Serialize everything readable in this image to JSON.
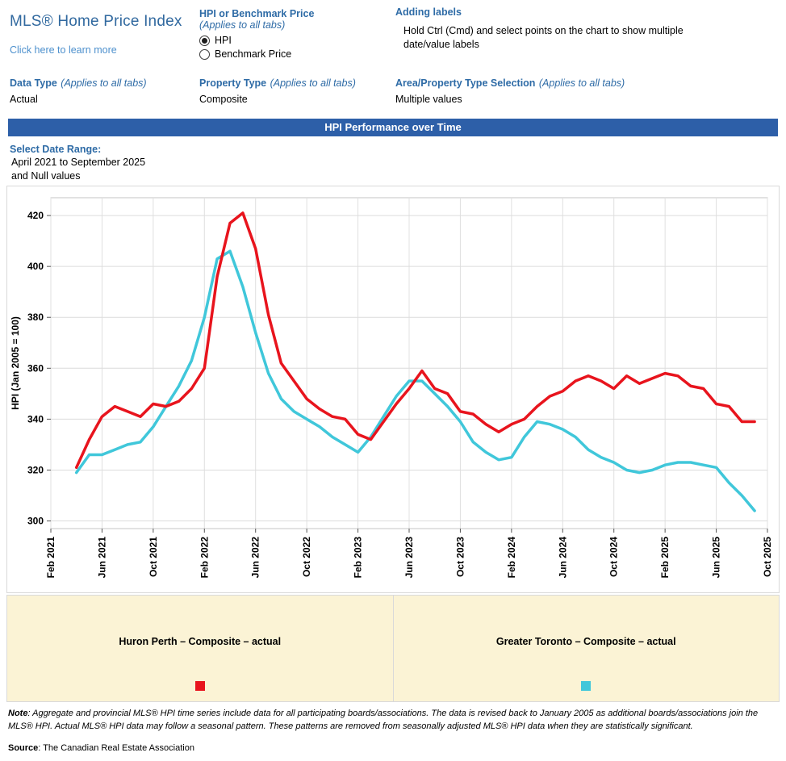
{
  "header": {
    "title": "MLS® Home Price Index",
    "learn_more": "Click here to learn more",
    "hpi_or_benchmark": {
      "label": "HPI or Benchmark Price",
      "sublabel": "(Applies to all tabs)",
      "options": [
        {
          "label": "HPI",
          "selected": true
        },
        {
          "label": "Benchmark Price",
          "selected": false
        }
      ]
    },
    "adding_labels": {
      "label": "Adding labels",
      "text": "Hold Ctrl (Cmd) and select points on the chart to show multiple date/value labels"
    },
    "data_type": {
      "label": "Data Type",
      "sublabel": "(Applies to all tabs)",
      "value": "Actual"
    },
    "property_type": {
      "label": "Property Type",
      "sublabel": "(Applies to all tabs)",
      "value": "Composite"
    },
    "area_selection": {
      "label": "Area/Property Type Selection",
      "sublabel": "(Applies to all tabs)",
      "value": "Multiple values"
    }
  },
  "banner": {
    "title": "HPI Performance over Time"
  },
  "date_range": {
    "label": "Select Date Range:",
    "value": "April 2021 to September 2025",
    "extra": "and Null values"
  },
  "chart_data": {
    "type": "line",
    "title": "HPI Performance over Time",
    "ylabel": "HPI (Jan 2005 = 100)",
    "ylim": [
      300,
      420
    ],
    "y_ticks": [
      300,
      320,
      340,
      360,
      380,
      400,
      420
    ],
    "x_tick_labels": [
      "Feb 2021",
      "Jun 2021",
      "Oct 2021",
      "Feb 2022",
      "Jun 2022",
      "Oct 2022",
      "Feb 2023",
      "Jun 2023",
      "Oct 2023",
      "Feb 2024",
      "Jun 2024",
      "Oct 2024",
      "Feb 2025",
      "Jun 2025",
      "Oct 2025"
    ],
    "x_interval": "monthly",
    "x_start": "Apr 2021",
    "x_end": "Sep 2025",
    "x_axis_total_months": 56,
    "x_data_start_offset": 2,
    "grid": true,
    "legend_position": "bottom",
    "series": [
      {
        "name": "Huron Perth – Composite – actual",
        "color": "#e8141d",
        "values": [
          321,
          332,
          341,
          345,
          343,
          341,
          346,
          345,
          347,
          352,
          360,
          396,
          417,
          421,
          407,
          381,
          362,
          355,
          348,
          344,
          341,
          340,
          334,
          332,
          339,
          346,
          352,
          359,
          352,
          350,
          343,
          342,
          338,
          335,
          338,
          340,
          345,
          349,
          351,
          355,
          357,
          355,
          352,
          357,
          354,
          356,
          358,
          357,
          353,
          352,
          346,
          345,
          339,
          339
        ]
      },
      {
        "name": "Greater Toronto – Composite – actual",
        "color": "#40c7da",
        "values": [
          319,
          326,
          326,
          328,
          330,
          331,
          337,
          345,
          353,
          363,
          380,
          403,
          406,
          392,
          374,
          358,
          348,
          343,
          340,
          337,
          333,
          330,
          327,
          333,
          341,
          349,
          355,
          355,
          350,
          345,
          339,
          331,
          327,
          324,
          325,
          333,
          339,
          338,
          336,
          333,
          328,
          325,
          323,
          320,
          319,
          320,
          322,
          323,
          323,
          322,
          321,
          315,
          310,
          304
        ]
      }
    ]
  },
  "legend": {
    "items": [
      {
        "label": "Huron Perth – Composite – actual",
        "color": "#e8141d"
      },
      {
        "label": "Greater Toronto – Composite – actual",
        "color": "#40c7da"
      }
    ]
  },
  "footer": {
    "note_label": "Note",
    "note_text": ": Aggregate and provincial MLS® HPI time series include data for all participating boards/associations. The data is revised back to January 2005 as additional boards/associations join the MLS® HPI. Actual MLS® HPI data may follow a seasonal pattern. These patterns are removed from seasonally adjusted MLS® HPI data when they are statistically significant.",
    "source_label": "Source",
    "source_text": ": The Canadian Real Estate Association"
  }
}
